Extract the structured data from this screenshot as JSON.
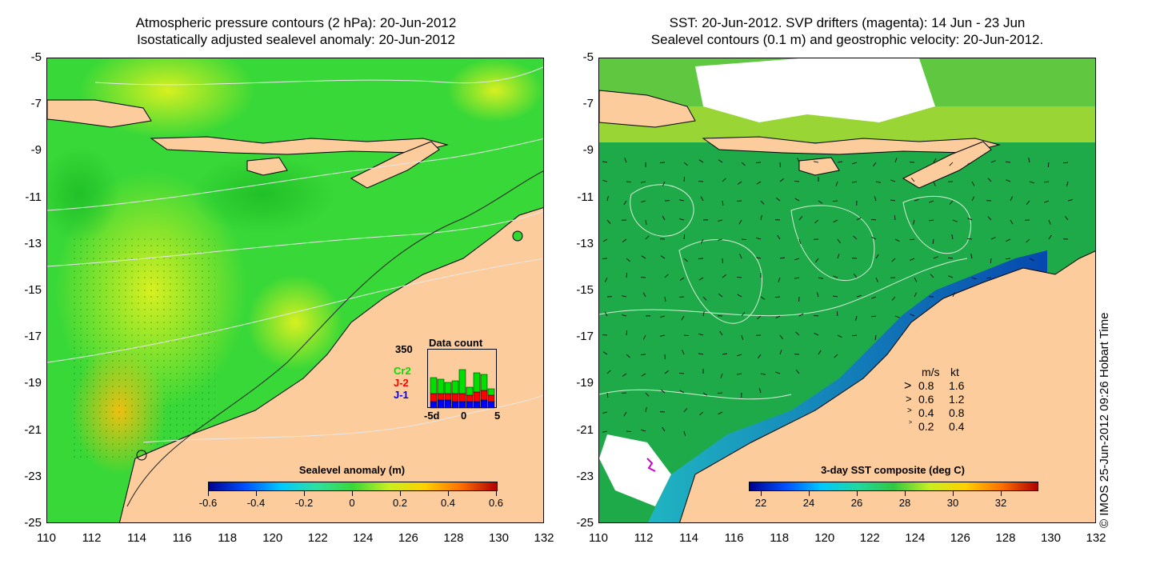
{
  "left_panel": {
    "title_line1": "Atmospheric pressure contours (2 hPa): 20-Jun-2012",
    "title_line2": "Isostatically adjusted sealevel anomaly: 20-Jun-2012",
    "colorbar": {
      "title": "Sealevel anomaly (m)",
      "range": [
        -0.6,
        0.6
      ],
      "tick_labels": [
        "-0.6",
        "-0.4",
        "-0.2",
        "0",
        "0.2",
        "0.4",
        "0.6"
      ],
      "colors": [
        "#00008f",
        "#0050ff",
        "#00c8ff",
        "#30e0a0",
        "#38d838",
        "#c8f020",
        "#ffd000",
        "#ff7000",
        "#b00000"
      ]
    },
    "data_count": {
      "title": "Data count",
      "y_max_label": "350",
      "x_labels": [
        "-5d",
        "0",
        "5"
      ],
      "legend": [
        {
          "label": "Cr2",
          "color": "#00e000"
        },
        {
          "label": "J-2",
          "color": "#ff0000"
        },
        {
          "label": "J-1",
          "color": "#0000ff"
        }
      ]
    }
  },
  "right_panel": {
    "title_line1": "SST: 20-Jun-2012. SVP drifters (magenta): 14 Jun - 23 Jun",
    "title_line2": "Sealevel contours (0.1 m) and geostrophic velocity: 20-Jun-2012.",
    "colorbar": {
      "title": "3-day SST composite (deg C)",
      "range": [
        21.5,
        33.5
      ],
      "tick_labels": [
        "22",
        "24",
        "26",
        "28",
        "30",
        "32"
      ],
      "colors": [
        "#00008f",
        "#0050ff",
        "#00c8ff",
        "#20d8a0",
        "#30c840",
        "#c8f020",
        "#ffd000",
        "#ff7000",
        "#b00000"
      ]
    },
    "velocity_legend": {
      "header_ms": "m/s",
      "header_kt": "kt",
      "rows": [
        {
          "ms": "0.8",
          "kt": "1.6"
        },
        {
          "ms": "0.6",
          "kt": "1.2"
        },
        {
          "ms": "0.4",
          "kt": "0.8"
        },
        {
          "ms": "0.2",
          "kt": "0.4"
        }
      ]
    }
  },
  "axes": {
    "lon_labels": [
      "110",
      "112",
      "114",
      "116",
      "118",
      "120",
      "122",
      "124",
      "126",
      "128",
      "130",
      "132"
    ],
    "lat_labels": [
      "-5",
      "-7",
      "-9",
      "-11",
      "-13",
      "-15",
      "-17",
      "-19",
      "-21",
      "-23",
      "-25"
    ],
    "lon_range": [
      110,
      132
    ],
    "lat_range": [
      -25,
      -5
    ]
  },
  "credit": "© IMOS 25-Jun-2012 09:26 Hobart Time",
  "colors": {
    "land": "#fccc9c",
    "sea_green": "#34d634",
    "sst_green": "#1faa4a",
    "cloud": "#ffffff"
  }
}
